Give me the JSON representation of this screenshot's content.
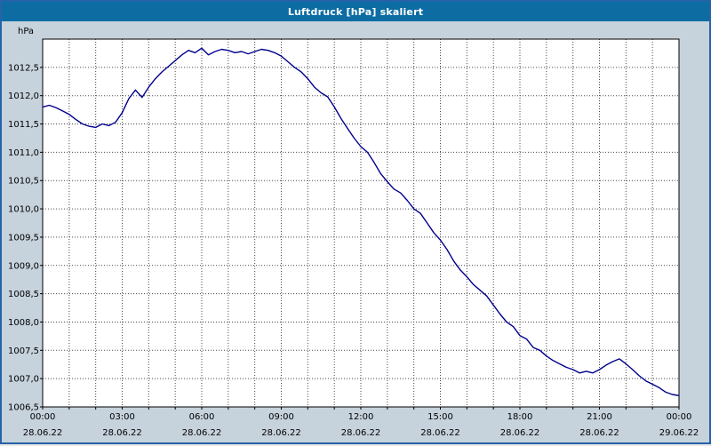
{
  "window": {
    "title": "Luftdruck [hPa] skaliert"
  },
  "colors": {
    "title_bar": "#0d6da3",
    "window_frame": "#2563a8",
    "chart_background": "#c6d2dc",
    "plot_background": "#ffffff",
    "grid": "#4a4a4a",
    "line": "#00008b",
    "axis": "#000000"
  },
  "chart_data": {
    "type": "line",
    "title": "Luftdruck [hPa] skaliert",
    "ylabel": "hPa",
    "unit_label": "hPa",
    "grid": "dotted",
    "legend": "none",
    "ylim": [
      1006.5,
      1013.0
    ],
    "xlim": [
      0,
      24
    ],
    "y_tick_values": [
      1006.5,
      1007.0,
      1007.5,
      1008.0,
      1008.5,
      1009.0,
      1009.5,
      1010.0,
      1010.5,
      1011.0,
      1011.5,
      1012.0,
      1012.5
    ],
    "y_tick_labels": [
      "1006,5",
      "1007,0",
      "1007,5",
      "1008,0",
      "1008,5",
      "1009,0",
      "1009,5",
      "1010,0",
      "1010,5",
      "1011,0",
      "1011,5",
      "1012,0",
      "1012,5"
    ],
    "x_tick_hours": [
      0,
      3,
      6,
      9,
      12,
      15,
      18,
      21,
      24
    ],
    "x_tick_labels": [
      "00:00",
      "03:00",
      "06:00",
      "09:00",
      "12:00",
      "15:00",
      "18:00",
      "21:00",
      "00:00"
    ],
    "x_tick_dates": [
      "28.06.22",
      "28.06.22",
      "28.06.22",
      "28.06.22",
      "28.06.22",
      "28.06.22",
      "28.06.22",
      "28.06.22",
      "29.06.22"
    ],
    "minor_x_grid_every_hours": 1,
    "minor_y_grid_every_hpa": 0.5,
    "series": [
      {
        "name": "Luftdruck",
        "color": "#00008b",
        "x": [
          0,
          0.25,
          0.5,
          0.75,
          1,
          1.25,
          1.5,
          1.75,
          2,
          2.25,
          2.5,
          2.75,
          3,
          3.25,
          3.5,
          3.75,
          4,
          4.25,
          4.5,
          4.75,
          5,
          5.25,
          5.5,
          5.75,
          6,
          6.25,
          6.5,
          6.75,
          7,
          7.25,
          7.5,
          7.75,
          8,
          8.25,
          8.5,
          8.75,
          9,
          9.25,
          9.5,
          9.75,
          10,
          10.25,
          10.5,
          10.75,
          11,
          11.25,
          11.5,
          11.75,
          12,
          12.25,
          12.5,
          12.75,
          13,
          13.25,
          13.5,
          13.75,
          14,
          14.25,
          14.5,
          14.75,
          15,
          15.25,
          15.5,
          15.75,
          16,
          16.25,
          16.5,
          16.75,
          17,
          17.25,
          17.5,
          17.75,
          18,
          18.25,
          18.5,
          18.75,
          19,
          19.25,
          19.5,
          19.75,
          20,
          20.25,
          20.5,
          20.75,
          21,
          21.25,
          21.5,
          21.75,
          22,
          22.25,
          22.5,
          22.75,
          23,
          23.25,
          23.5,
          23.75,
          24
        ],
        "values": [
          1011.8,
          1011.83,
          1011.79,
          1011.73,
          1011.67,
          1011.58,
          1011.5,
          1011.46,
          1011.44,
          1011.5,
          1011.47,
          1011.53,
          1011.7,
          1011.95,
          1012.1,
          1011.97,
          1012.15,
          1012.3,
          1012.42,
          1012.52,
          1012.62,
          1012.72,
          1012.8,
          1012.76,
          1012.84,
          1012.72,
          1012.78,
          1012.82,
          1012.8,
          1012.76,
          1012.78,
          1012.74,
          1012.78,
          1012.82,
          1012.8,
          1012.76,
          1012.7,
          1012.6,
          1012.5,
          1012.42,
          1012.3,
          1012.15,
          1012.05,
          1011.98,
          1011.8,
          1011.6,
          1011.42,
          1011.25,
          1011.1,
          1011.0,
          1010.82,
          1010.62,
          1010.48,
          1010.35,
          1010.28,
          1010.15,
          1010.0,
          1009.92,
          1009.75,
          1009.58,
          1009.45,
          1009.28,
          1009.08,
          1008.92,
          1008.8,
          1008.66,
          1008.56,
          1008.46,
          1008.3,
          1008.14,
          1008.0,
          1007.92,
          1007.76,
          1007.7,
          1007.55,
          1007.5,
          1007.4,
          1007.32,
          1007.26,
          1007.2,
          1007.16,
          1007.1,
          1007.13,
          1007.1,
          1007.16,
          1007.24,
          1007.3,
          1007.35,
          1007.26,
          1007.16,
          1007.05,
          1006.96,
          1006.9,
          1006.84,
          1006.76,
          1006.72,
          1006.7
        ]
      }
    ]
  }
}
